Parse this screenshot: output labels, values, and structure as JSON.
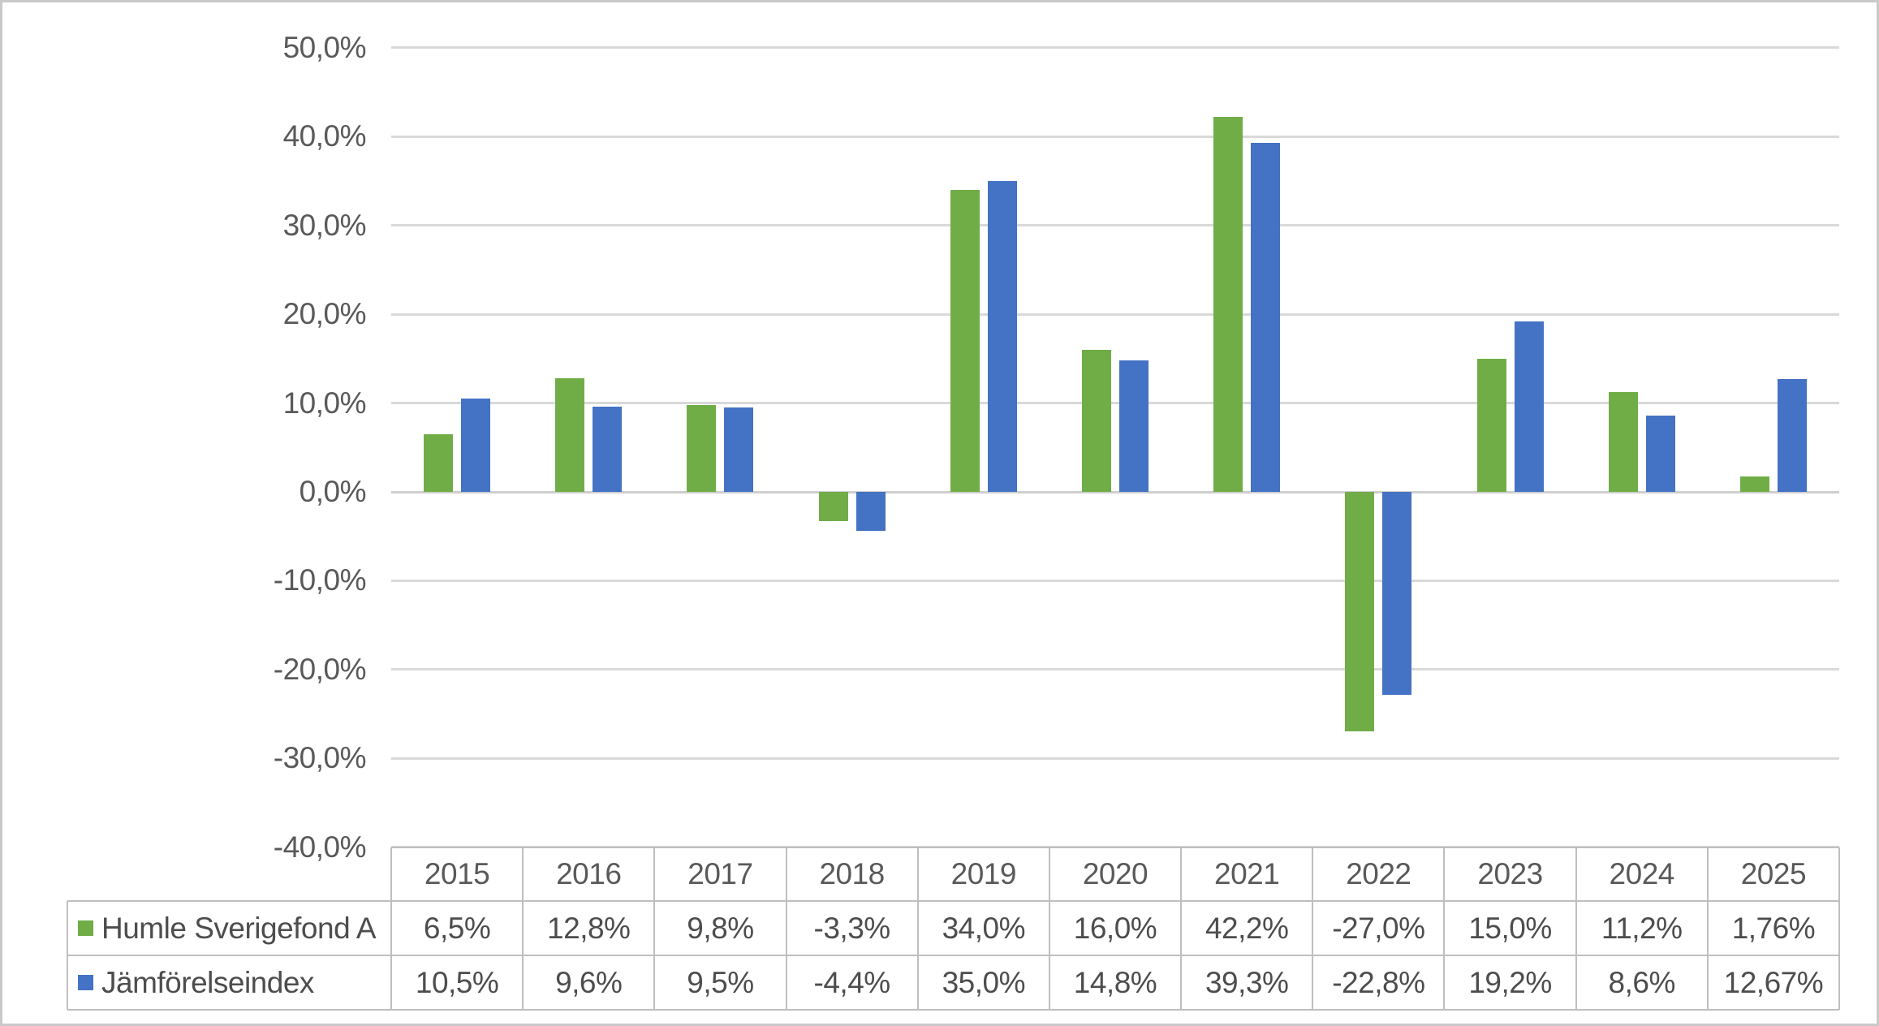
{
  "chart_data": {
    "type": "bar",
    "title": "",
    "xlabel": "",
    "ylabel": "",
    "categories": [
      "2015",
      "2016",
      "2017",
      "2018",
      "2019",
      "2020",
      "2021",
      "2022",
      "2023",
      "2024",
      "2025"
    ],
    "series": [
      {
        "name": "Humle Sverigefond A",
        "color": "#70AD47",
        "values": [
          6.5,
          12.8,
          9.8,
          -3.3,
          34.0,
          16.0,
          42.2,
          -27.0,
          15.0,
          11.2,
          1.76
        ],
        "value_labels": [
          "6,5%",
          "12,8%",
          "9,8%",
          "-3,3%",
          "34,0%",
          "16,0%",
          "42,2%",
          "-27,0%",
          "15,0%",
          "11,2%",
          "1,76%"
        ]
      },
      {
        "name": "Jämförelseindex",
        "color": "#4472C4",
        "values": [
          10.5,
          9.6,
          9.5,
          -4.4,
          35.0,
          14.8,
          39.3,
          -22.8,
          19.2,
          8.6,
          12.67
        ],
        "value_labels": [
          "10,5%",
          "9,6%",
          "9,5%",
          "-4,4%",
          "35,0%",
          "14,8%",
          "39,3%",
          "-22,8%",
          "19,2%",
          "8,6%",
          "12,67%"
        ]
      }
    ],
    "y_axis": {
      "min": -40,
      "max": 50,
      "step": 10,
      "tick_labels": [
        "50,0%",
        "40,0%",
        "30,0%",
        "20,0%",
        "10,0%",
        "0,0%",
        "-10,0%",
        "-20,0%",
        "-30,0%",
        "-40,0%"
      ],
      "number_format": "percent, comma decimal separator"
    },
    "grid": "horizontal",
    "legend_position": "left column of data table below chart",
    "has_data_table": true
  }
}
